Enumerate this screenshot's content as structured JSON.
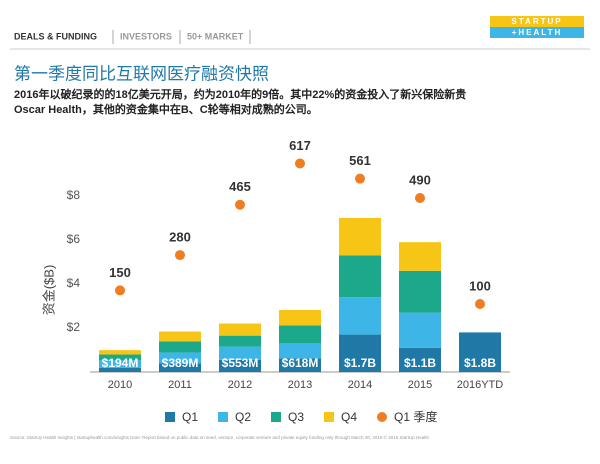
{
  "header": {
    "tabs": [
      "DEALS & FUNDING",
      "INVESTORS",
      "50+ MARKET"
    ],
    "logo": [
      "STARTUP",
      "+HEALTH"
    ]
  },
  "footer": "Source: StartUp Health Insights | startuphealth.com/insights  Note: Report based on public data on seed, venture, corporate venture and private equity funding only through March 30, 2016 © 2016 StartUp Health",
  "chart_data": {
    "type": "bar",
    "title": "第一季度同比互联网医疗融资快照",
    "subtitle": [
      "2016年以破纪录的的18亿美元开局，约为2010年的9倍。其中22%的资金投入了新兴保险新贵",
      "Oscar Health，其他的资金集中在B、C轮等相对成熟的公司。"
    ],
    "y_label": "资金($B)",
    "categories": [
      "2010",
      "2011",
      "2012",
      "2013",
      "2014",
      "2015",
      "2016YTD"
    ],
    "series": [
      {
        "name": "Q1",
        "color": "#1f78a6",
        "values": [
          0.194,
          0.389,
          0.553,
          0.618,
          1.7,
          1.1,
          1.8
        ],
        "value_labels": [
          "$194M",
          "$389M",
          "$553M",
          "$618M",
          "$1.7B",
          "$1.1B",
          "$1.8B"
        ]
      },
      {
        "name": "Q2",
        "color": "#3db5e6",
        "values": [
          0.35,
          0.5,
          0.6,
          0.7,
          1.7,
          1.6,
          null
        ]
      },
      {
        "name": "Q3",
        "color": "#1ca88a",
        "values": [
          0.25,
          0.5,
          0.5,
          0.8,
          1.9,
          1.9,
          null
        ]
      },
      {
        "name": "Q4",
        "color": "#f6c516",
        "values": [
          0.2,
          0.45,
          0.55,
          0.7,
          1.7,
          1.3,
          null
        ]
      },
      {
        "name": "Q1 季度",
        "color": "#ef7d22",
        "type": "scatter",
        "axis": "y2",
        "values": [
          150,
          280,
          465,
          617,
          561,
          490,
          100
        ]
      }
    ],
    "ylim": [
      0,
      11
    ],
    "yticks": [
      {
        "value": 2,
        "label": "$2"
      },
      {
        "value": 4,
        "label": "$4"
      },
      {
        "value": 6,
        "label": "$6"
      },
      {
        "value": 8,
        "label": "$8"
      }
    ],
    "y2lim": [
      -150,
      740
    ],
    "legend": "bottom"
  }
}
